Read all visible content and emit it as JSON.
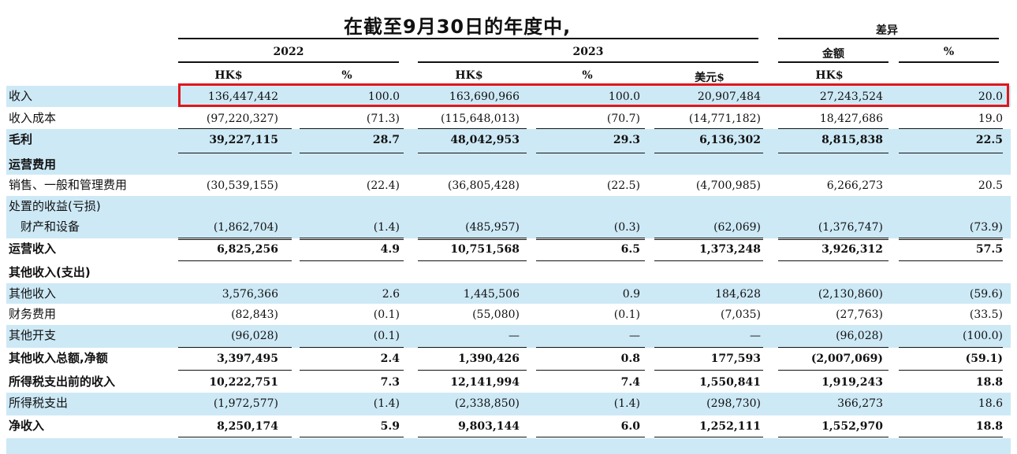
{
  "heading": "在截至9月30日的年度中,",
  "headers": {
    "diff": "差异",
    "y2022": "2022",
    "y2023": "2023",
    "amount": "金额",
    "pct": "%",
    "hk": "HK$",
    "usd": "美元$"
  },
  "rows": [
    {
      "label": "收入",
      "bold": false,
      "blue": true,
      "v": [
        "136,447,442",
        "100.0",
        "163,690,966",
        "100.0",
        "20,907,484",
        "27,243,524",
        "20.0"
      ]
    },
    {
      "label": "收入成本",
      "bold": false,
      "blue": false,
      "v": [
        "(97,220,327)",
        "(71.3)",
        "(115,648,013)",
        "(70.7)",
        "(14,771,182)",
        "18,427,686",
        "19.0"
      ]
    },
    {
      "label": "毛利",
      "bold": true,
      "blue": true,
      "v": [
        "39,227,115",
        "28.7",
        "48,042,953",
        "29.3",
        "6,136,302",
        "8,815,838",
        "22.5"
      ]
    },
    {
      "label": "运营费用",
      "bold": true,
      "blue": true,
      "v": [
        "",
        "",
        "",
        "",
        "",
        "",
        ""
      ]
    },
    {
      "label": "销售、一般和管理费用",
      "bold": false,
      "blue": false,
      "v": [
        "(30,539,155)",
        "(22.4)",
        "(36,805,428)",
        "(22.5)",
        "(4,700,985)",
        "6,266,273",
        "20.5"
      ]
    },
    {
      "label": "处置的收益(亏损)",
      "bold": false,
      "blue": true,
      "v": [
        "",
        "",
        "",
        "",
        "",
        "",
        ""
      ]
    },
    {
      "label": "财产和设备",
      "bold": false,
      "blue": true,
      "v": [
        "(1,862,704)",
        "(1.4)",
        "(485,957)",
        "(0.3)",
        "(62,069)",
        "(1,376,747)",
        "(73.9)"
      ]
    },
    {
      "label": "运营收入",
      "bold": true,
      "blue": false,
      "v": [
        "6,825,256",
        "4.9",
        "10,751,568",
        "6.5",
        "1,373,248",
        "3,926,312",
        "57.5"
      ]
    },
    {
      "label": "其他收入(支出)",
      "bold": true,
      "blue": false,
      "v": [
        "",
        "",
        "",
        "",
        "",
        "",
        ""
      ]
    },
    {
      "label": "其他收入",
      "bold": false,
      "blue": true,
      "v": [
        "3,576,366",
        "2.6",
        "1,445,506",
        "0.9",
        "184,628",
        "(2,130,860)",
        "(59.6)"
      ]
    },
    {
      "label": "财务费用",
      "bold": false,
      "blue": false,
      "v": [
        "(82,843)",
        "(0.1)",
        "(55,080)",
        "(0.1)",
        "(7,035)",
        "(27,763)",
        "(33.5)"
      ]
    },
    {
      "label": "其他开支",
      "bold": false,
      "blue": true,
      "v": [
        "(96,028)",
        "(0.1)",
        "—",
        "—",
        "—",
        "(96,028)",
        "(100.0)"
      ]
    },
    {
      "label": "其他收入总额,净额",
      "bold": true,
      "blue": false,
      "v": [
        "3,397,495",
        "2.4",
        "1,390,426",
        "0.8",
        "177,593",
        "(2,007,069)",
        "(59.1)"
      ]
    },
    {
      "label": "所得税支出前的收入",
      "bold": true,
      "blue": false,
      "v": [
        "10,222,751",
        "7.3",
        "12,141,994",
        "7.4",
        "1,550,841",
        "1,919,243",
        "18.8"
      ]
    },
    {
      "label": "所得税支出",
      "bold": false,
      "blue": true,
      "v": [
        "(1,972,577)",
        "(1.4)",
        "(2,338,850)",
        "(1.4)",
        "(298,730)",
        "366,273",
        "18.6"
      ]
    },
    {
      "label": "净收入",
      "bold": true,
      "blue": false,
      "v": [
        "8,250,174",
        "5.9",
        "9,803,144",
        "6.0",
        "1,252,111",
        "1,552,970",
        "18.8"
      ]
    },
    {
      "label": "",
      "bold": false,
      "blue": true,
      "v": [
        "",
        "",
        "",
        "",
        "",
        "",
        ""
      ]
    }
  ]
}
